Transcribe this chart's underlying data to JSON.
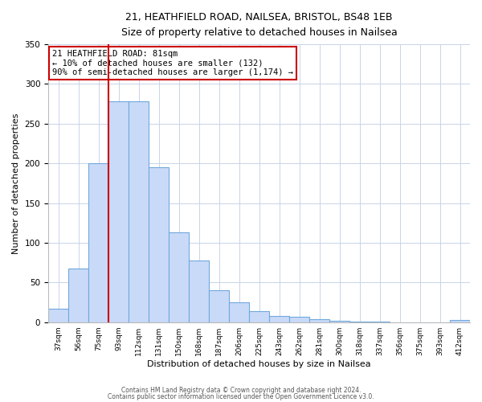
{
  "title": "21, HEATHFIELD ROAD, NAILSEA, BRISTOL, BS48 1EB",
  "subtitle": "Size of property relative to detached houses in Nailsea",
  "xlabel": "Distribution of detached houses by size in Nailsea",
  "ylabel": "Number of detached properties",
  "bar_labels": [
    "37sqm",
    "56sqm",
    "75sqm",
    "93sqm",
    "112sqm",
    "131sqm",
    "150sqm",
    "168sqm",
    "187sqm",
    "206sqm",
    "225sqm",
    "243sqm",
    "262sqm",
    "281sqm",
    "300sqm",
    "318sqm",
    "337sqm",
    "356sqm",
    "375sqm",
    "393sqm",
    "412sqm"
  ],
  "bar_values": [
    17,
    68,
    200,
    278,
    278,
    195,
    113,
    78,
    40,
    25,
    14,
    8,
    7,
    4,
    2,
    1,
    1,
    0,
    0,
    0,
    3
  ],
  "bar_color": "#c9daf8",
  "bar_edgecolor": "#6fa8dc",
  "vline_idx": 2,
  "vline_color": "#cc0000",
  "annotation_text": "21 HEATHFIELD ROAD: 81sqm\n← 10% of detached houses are smaller (132)\n90% of semi-detached houses are larger (1,174) →",
  "annotation_box_color": "#ffffff",
  "annotation_box_edgecolor": "#cc0000",
  "ylim": [
    0,
    350
  ],
  "yticks": [
    0,
    50,
    100,
    150,
    200,
    250,
    300,
    350
  ],
  "footer_line1": "Contains HM Land Registry data © Crown copyright and database right 2024.",
  "footer_line2": "Contains public sector information licensed under the Open Government Licence v3.0.",
  "background_color": "#ffffff",
  "grid_color": "#c9d4e8"
}
